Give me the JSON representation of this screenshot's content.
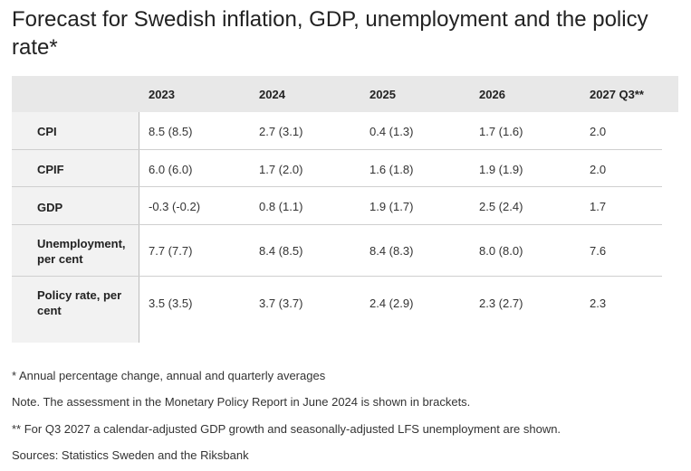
{
  "title": "Forecast for Swedish inflation, GDP, unemployment and the policy rate*",
  "table": {
    "columns": [
      "2023",
      "2024",
      "2025",
      "2026",
      "2027 Q3**"
    ],
    "rows": [
      {
        "label": "CPI",
        "cells": [
          "8.5 (8.5)",
          "2.7 (3.1)",
          "0.4 (1.3)",
          "1.7 (1.6)",
          "2.0"
        ]
      },
      {
        "label": "CPIF",
        "cells": [
          "6.0 (6.0)",
          "1.7 (2.0)",
          "1.6 (1.8)",
          "1.9 (1.9)",
          "2.0"
        ]
      },
      {
        "label": "GDP",
        "cells": [
          "-0.3 (-0.2)",
          "0.8 (1.1)",
          "1.9 (1.7)",
          "2.5 (2.4)",
          "1.7"
        ]
      },
      {
        "label": "Unemployment, per cent",
        "cells": [
          "7.7 (7.7)",
          "8.4 (8.5)",
          "8.4 (8.3)",
          "8.0 (8.0)",
          "7.6"
        ]
      },
      {
        "label": "Policy rate, per cent",
        "cells": [
          "3.5 (3.5)",
          "3.7 (3.7)",
          "2.4 (2.9)",
          "2.3 (2.7)",
          "2.3"
        ]
      }
    ]
  },
  "notes": {
    "annual": "* Annual percentage change, annual and quarterly averages",
    "assessment": "Note. The assessment in the Monetary Policy Report in June 2024 is shown in brackets.",
    "q3": "** For Q3 2027 a calendar-adjusted GDP growth and seasonally-adjusted LFS unemployment are shown.",
    "sources": "Sources: Statistics Sweden and the Riksbank"
  }
}
